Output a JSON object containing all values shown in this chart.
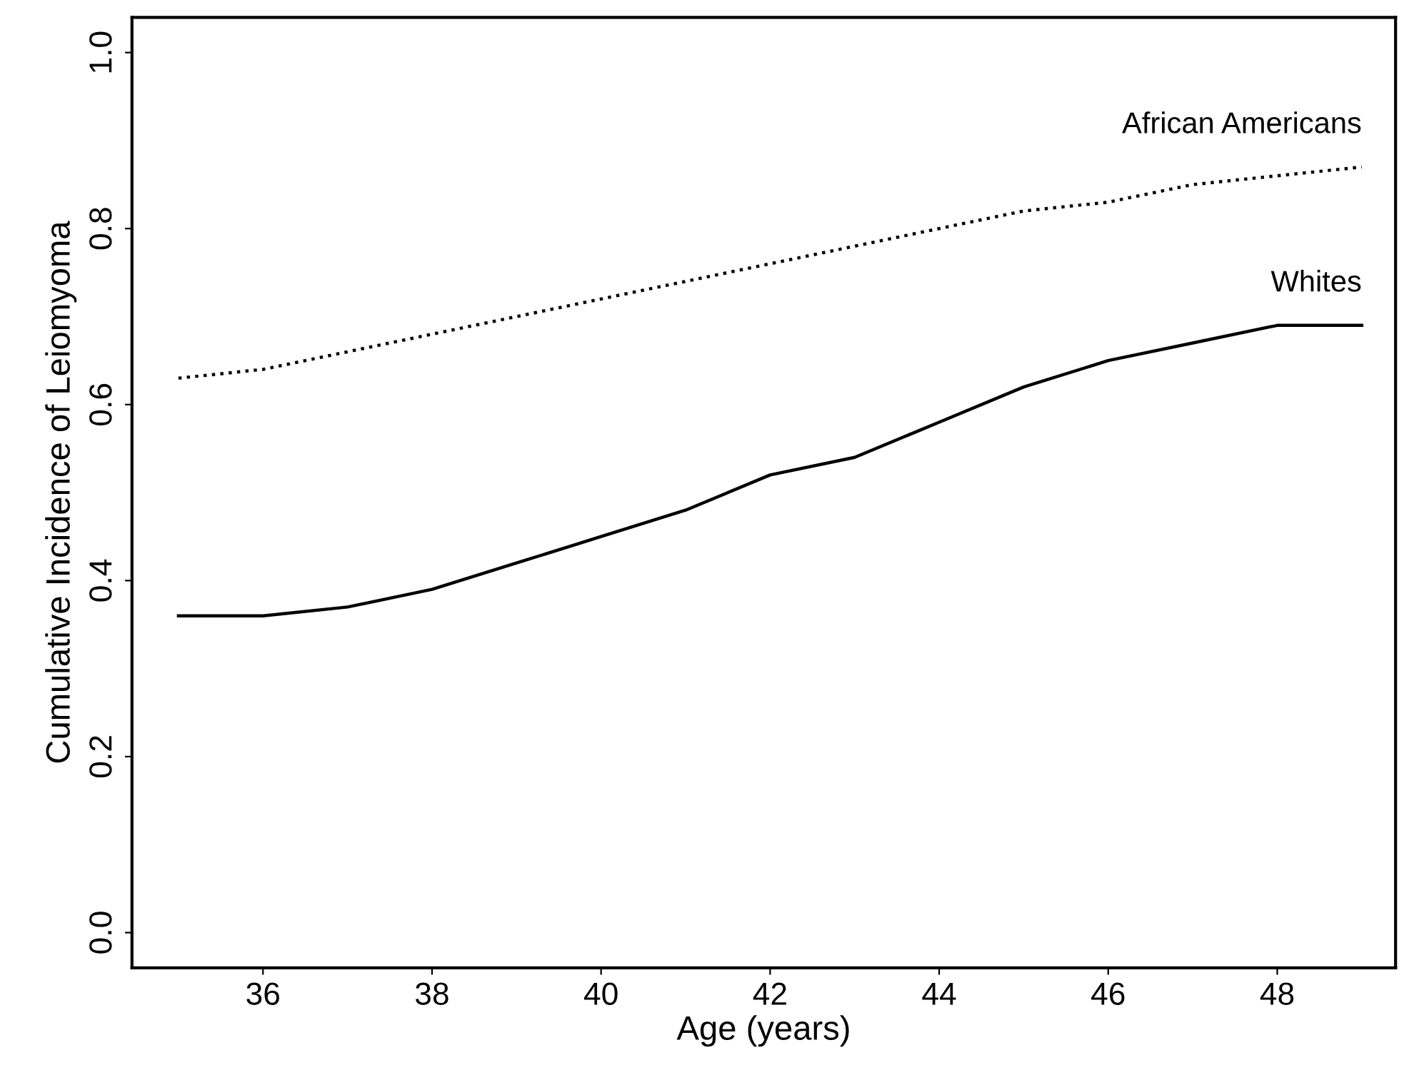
{
  "chart_data": {
    "type": "line",
    "xlabel": "Age (years)",
    "ylabel": "Cumulative Incidence of Leiomyoma",
    "x": [
      35,
      36,
      37,
      38,
      39,
      40,
      41,
      42,
      43,
      44,
      45,
      46,
      47,
      48,
      49
    ],
    "series": [
      {
        "name": "African Americans",
        "color": "#000000",
        "line_style": "dotted",
        "values": [
          0.63,
          0.64,
          0.66,
          0.68,
          0.7,
          0.72,
          0.74,
          0.76,
          0.78,
          0.8,
          0.82,
          0.83,
          0.85,
          0.86,
          0.87
        ]
      },
      {
        "name": "Whites",
        "color": "#000000",
        "line_style": "solid",
        "values": [
          0.36,
          0.36,
          0.37,
          0.39,
          0.42,
          0.45,
          0.48,
          0.52,
          0.54,
          0.58,
          0.62,
          0.65,
          0.67,
          0.69,
          0.69
        ]
      }
    ],
    "xlim": [
      34.45,
      49.4
    ],
    "ylim": [
      -0.04,
      1.04
    ],
    "xticks": [
      36,
      38,
      40,
      42,
      44,
      46,
      48
    ],
    "yticks": [
      {
        "value": 0,
        "label": "0.0"
      },
      0.2,
      0.4,
      0.6,
      0.8,
      {
        "value": 1,
        "label": "1.0"
      }
    ],
    "grid": false,
    "legend": false
  }
}
